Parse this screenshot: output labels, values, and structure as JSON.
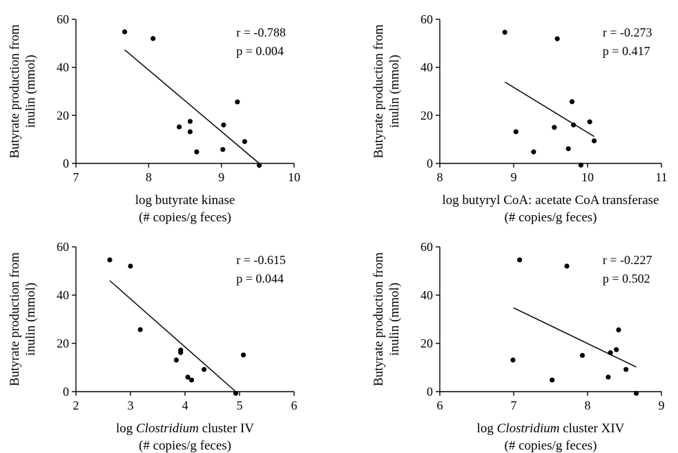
{
  "chart_data": [
    {
      "type": "scatter",
      "xlabel": "log butyrate kinase",
      "xlabel_italic": "",
      "xlabel_suffix": "",
      "xlabel_line2": "(# copies/g feces)",
      "ylabel_line1": "Butyrate production from",
      "ylabel_line2": "inulin (mmol)",
      "xlim": [
        7,
        10
      ],
      "ylim": [
        0,
        60
      ],
      "xticks": [
        7,
        8,
        9,
        10
      ],
      "yticks": [
        0,
        20,
        40,
        60
      ],
      "r_text": "r = -0.788",
      "p_text": "p = 0.004",
      "points": [
        {
          "x": 7.67,
          "y": 54.8
        },
        {
          "x": 8.06,
          "y": 52.0
        },
        {
          "x": 8.42,
          "y": 15.2
        },
        {
          "x": 8.57,
          "y": 17.5
        },
        {
          "x": 8.57,
          "y": 13.2
        },
        {
          "x": 8.66,
          "y": 4.8
        },
        {
          "x": 9.03,
          "y": 16.0
        },
        {
          "x": 9.02,
          "y": 5.8
        },
        {
          "x": 9.22,
          "y": 25.6
        },
        {
          "x": 9.32,
          "y": 9.1
        },
        {
          "x": 9.52,
          "y": -0.8
        }
      ],
      "fit": {
        "x1": 7.67,
        "y1": 47.3,
        "x2": 9.52,
        "y2": 0.0
      }
    },
    {
      "type": "scatter",
      "xlabel": "log butyryl CoA: acetate CoA transferase",
      "xlabel_italic": "",
      "xlabel_suffix": "",
      "xlabel_line2": "(# copies/g feces)",
      "ylabel_line1": "Butyrate production from",
      "ylabel_line2": "inulin (mmol)",
      "xlim": [
        8,
        11
      ],
      "ylim": [
        0,
        60
      ],
      "xticks": [
        8,
        9,
        10,
        11
      ],
      "yticks": [
        0,
        20,
        40,
        60
      ],
      "r_text": "r = -0.273",
      "p_text": "p = 0.417",
      "points": [
        {
          "x": 8.88,
          "y": 54.6
        },
        {
          "x": 9.59,
          "y": 51.9
        },
        {
          "x": 9.03,
          "y": 13.2
        },
        {
          "x": 9.27,
          "y": 4.8
        },
        {
          "x": 9.55,
          "y": 15.0
        },
        {
          "x": 9.74,
          "y": 6.1
        },
        {
          "x": 9.79,
          "y": 25.7
        },
        {
          "x": 9.81,
          "y": 16.0
        },
        {
          "x": 10.03,
          "y": 17.3
        },
        {
          "x": 10.09,
          "y": 9.4
        },
        {
          "x": 9.91,
          "y": -0.7
        }
      ],
      "fit": {
        "x1": 8.88,
        "y1": 33.9,
        "x2": 10.09,
        "y2": 11.2
      }
    },
    {
      "type": "scatter",
      "xlabel": "log ",
      "xlabel_italic": "Clostridium",
      "xlabel_suffix": " cluster IV",
      "xlabel_line2": "(# copies/g feces)",
      "ylabel_line1": "Butyrate production from",
      "ylabel_line2": "inulin (mmol)",
      "xlim": [
        2,
        6
      ],
      "ylim": [
        0,
        60
      ],
      "xticks": [
        2,
        3,
        4,
        5,
        6
      ],
      "yticks": [
        0,
        20,
        40,
        60
      ],
      "r_text": "r = -0.615",
      "p_text": "p = 0.044",
      "points": [
        {
          "x": 2.62,
          "y": 54.6
        },
        {
          "x": 3.0,
          "y": 52.0
        },
        {
          "x": 3.18,
          "y": 25.7
        },
        {
          "x": 3.84,
          "y": 13.1
        },
        {
          "x": 3.92,
          "y": 17.2
        },
        {
          "x": 3.92,
          "y": 16.2
        },
        {
          "x": 4.35,
          "y": 9.2
        },
        {
          "x": 4.05,
          "y": 6.0
        },
        {
          "x": 4.12,
          "y": 4.8
        },
        {
          "x": 5.07,
          "y": 15.2
        },
        {
          "x": 4.93,
          "y": -0.7
        }
      ],
      "fit": {
        "x1": 2.62,
        "y1": 46.0,
        "x2": 4.93,
        "y2": 0.0
      }
    },
    {
      "type": "scatter",
      "xlabel": "log ",
      "xlabel_italic": "Clostridium",
      "xlabel_suffix": " cluster XIV",
      "xlabel_line2": "(# copies/g feces)",
      "ylabel_line1": "Butyrate production from",
      "ylabel_line2": "inulin (mmol)",
      "xlim": [
        6,
        9
      ],
      "ylim": [
        0,
        60
      ],
      "xticks": [
        6,
        7,
        8,
        9
      ],
      "yticks": [
        0,
        20,
        40,
        60
      ],
      "r_text": "r = -0.227",
      "p_text": "p = 0.502",
      "points": [
        {
          "x": 7.08,
          "y": 54.6
        },
        {
          "x": 7.72,
          "y": 52.0
        },
        {
          "x": 6.99,
          "y": 13.1
        },
        {
          "x": 7.52,
          "y": 4.8
        },
        {
          "x": 7.93,
          "y": 15.0
        },
        {
          "x": 8.28,
          "y": 6.0
        },
        {
          "x": 8.31,
          "y": 16.1
        },
        {
          "x": 8.39,
          "y": 17.4
        },
        {
          "x": 8.42,
          "y": 25.6
        },
        {
          "x": 8.52,
          "y": 9.2
        },
        {
          "x": 8.66,
          "y": -0.7
        }
      ],
      "fit": {
        "x1": 7.0,
        "y1": 34.7,
        "x2": 8.66,
        "y2": 10.2
      }
    }
  ]
}
